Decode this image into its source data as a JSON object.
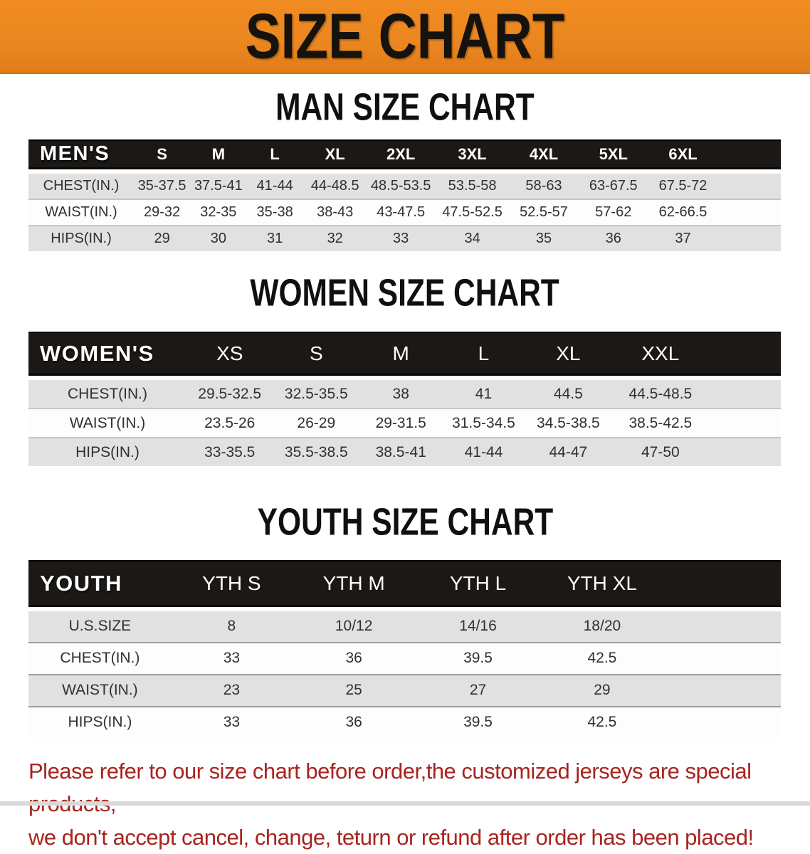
{
  "banner": {
    "title": "SIZE CHART",
    "bg_color": "#ec8720",
    "text_color": "#16130e"
  },
  "sections": [
    {
      "title": "MAN SIZE CHART",
      "header_label": "MEN'S",
      "columns": [
        "S",
        "M",
        "L",
        "XL",
        "2XL",
        "3XL",
        "4XL",
        "5XL",
        "6XL"
      ],
      "rows": [
        {
          "label": "CHEST(IN.)",
          "values": [
            "35-37.5",
            "37.5-41",
            "41-44",
            "44-48.5",
            "48.5-53.5",
            "53.5-58",
            "58-63",
            "63-67.5",
            "67.5-72"
          ]
        },
        {
          "label": "WAIST(IN.)",
          "values": [
            "29-32",
            "32-35",
            "35-38",
            "38-43",
            "43-47.5",
            "47.5-52.5",
            "52.5-57",
            "57-62",
            "62-66.5"
          ]
        },
        {
          "label": "HIPS(IN.)",
          "values": [
            "29",
            "30",
            "31",
            "32",
            "33",
            "34",
            "35",
            "36",
            "37"
          ]
        }
      ]
    },
    {
      "title": "WOMEN SIZE CHART",
      "header_label": "WOMEN'S",
      "columns": [
        "XS",
        "S",
        "M",
        "L",
        "XL",
        "XXL"
      ],
      "rows": [
        {
          "label": "CHEST(IN.)",
          "values": [
            "29.5-32.5",
            "32.5-35.5",
            "38",
            "41",
            "44.5",
            "44.5-48.5"
          ]
        },
        {
          "label": "WAIST(IN.)",
          "values": [
            "23.5-26",
            "26-29",
            "29-31.5",
            "31.5-34.5",
            "34.5-38.5",
            "38.5-42.5"
          ]
        },
        {
          "label": "HIPS(IN.)",
          "values": [
            "33-35.5",
            "35.5-38.5",
            "38.5-41",
            "41-44",
            "44-47",
            "47-50"
          ]
        }
      ]
    },
    {
      "title": "YOUTH SIZE CHART",
      "header_label": "YOUTH",
      "columns": [
        "YTH S",
        "YTH M",
        "YTH L",
        "YTH XL"
      ],
      "rows": [
        {
          "label": "U.S.SIZE",
          "values": [
            "8",
            "10/12",
            "14/16",
            "18/20"
          ]
        },
        {
          "label": "CHEST(IN.)",
          "values": [
            "33",
            "36",
            "39.5",
            "42.5"
          ]
        },
        {
          "label": "WAIST(IN.)",
          "values": [
            "23",
            "25",
            "27",
            "29"
          ]
        },
        {
          "label": "HIPS(IN.)",
          "values": [
            "33",
            "36",
            "39.5",
            "42.5"
          ]
        }
      ]
    }
  ],
  "disclaimer": {
    "line1": "Please refer to our size chart before order,the customized jerseys are special products,",
    "line2": "we don't accept cancel, change, teturn or refund after order has been placed!",
    "color": "#a7241f"
  }
}
